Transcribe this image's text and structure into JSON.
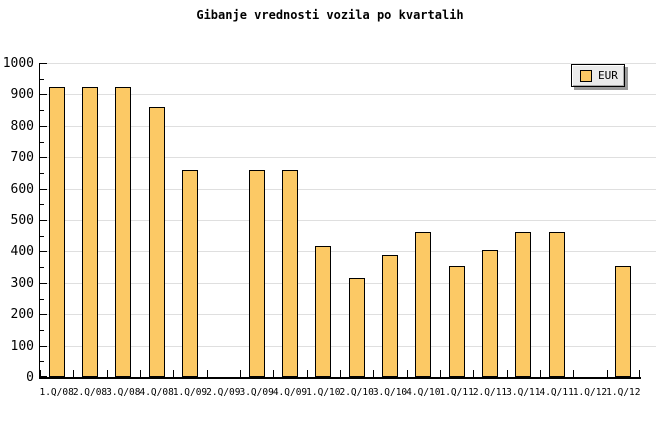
{
  "chart_data": {
    "type": "bar",
    "title": "Gibanje vrednosti vozila po kvartalih",
    "xlabel": "",
    "ylabel": "",
    "unit": "EUR",
    "categories": [
      "1.Q/08",
      "2.Q/08",
      "3.Q/08",
      "4.Q/08",
      "1.Q/09",
      "2.Q/09",
      "3.Q/09",
      "4.Q/09",
      "1.Q/10",
      "2.Q/10",
      "3.Q/10",
      "4.Q/10",
      "1.Q/11",
      "2.Q/11",
      "3.Q/11",
      "4.Q/11",
      "1.Q/12",
      "1.Q/12"
    ],
    "series": [
      {
        "name": "EUR",
        "values": [
          925,
          925,
          925,
          860,
          660,
          0,
          660,
          660,
          418,
          316,
          388,
          462,
          352,
          406,
          462,
          462,
          0,
          352
        ]
      }
    ],
    "ylim": [
      0,
      1000
    ],
    "ytick_major": 100,
    "ytick_minor": 50,
    "grid": "horizontal-major",
    "legend_position": "top-right",
    "colors": {
      "bar_fill": "#FCC965",
      "bar_border": "#000000",
      "gridline": "#DFDFDF",
      "axis": "#000000",
      "legend_bg": "#EBEBEB",
      "legend_shadow": "#9A9A9A",
      "background": "#FFFFFF",
      "text": "#000000"
    }
  }
}
